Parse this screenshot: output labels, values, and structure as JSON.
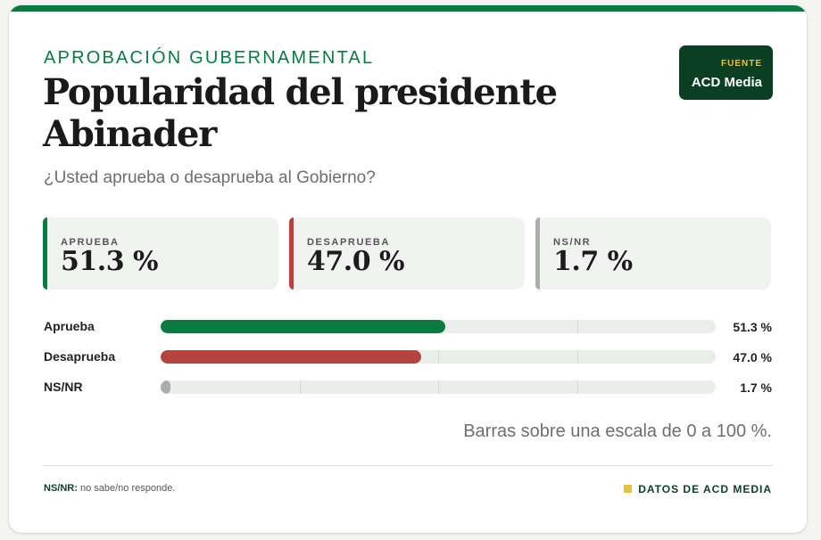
{
  "header": {
    "kicker": "APROBACIÓN GUBERNAMENTAL",
    "title": "Popularidad del presidente Abinader",
    "subtitle": "¿Usted aprueba o desaprueba al Gobierno?"
  },
  "source": {
    "label": "FUENTE",
    "name": "ACD Media"
  },
  "stats": [
    {
      "label": "APRUEBA",
      "value": "51.3 %",
      "color": "#0b7a41"
    },
    {
      "label": "DESAPRUEBA",
      "value": "47.0 %",
      "color": "#b5443c"
    },
    {
      "label": "NS/NR",
      "value": "1.7 %",
      "color": "#a9aeab"
    }
  ],
  "chart_data": {
    "type": "bar",
    "orientation": "horizontal",
    "categories": [
      "Aprueba",
      "Desaprueba",
      "NS/NR"
    ],
    "values": [
      51.3,
      47.0,
      1.7
    ],
    "value_labels": [
      "51.3 %",
      "47.0 %",
      "1.7 %"
    ],
    "colors": [
      "#0b7a41",
      "#b5443c",
      "#a9aeab"
    ],
    "xlim": [
      0,
      100
    ],
    "grid": true,
    "gridlines_at": [
      25,
      50,
      75
    ],
    "unit": "%"
  },
  "scale_note": "Barras sobre una escala de 0 a 100 %.",
  "footer": {
    "term": "NS/NR:",
    "definition": " no sabe/no responde.",
    "credit": "DATOS DE ACD MEDIA"
  },
  "accent_color": "#0b7a41"
}
